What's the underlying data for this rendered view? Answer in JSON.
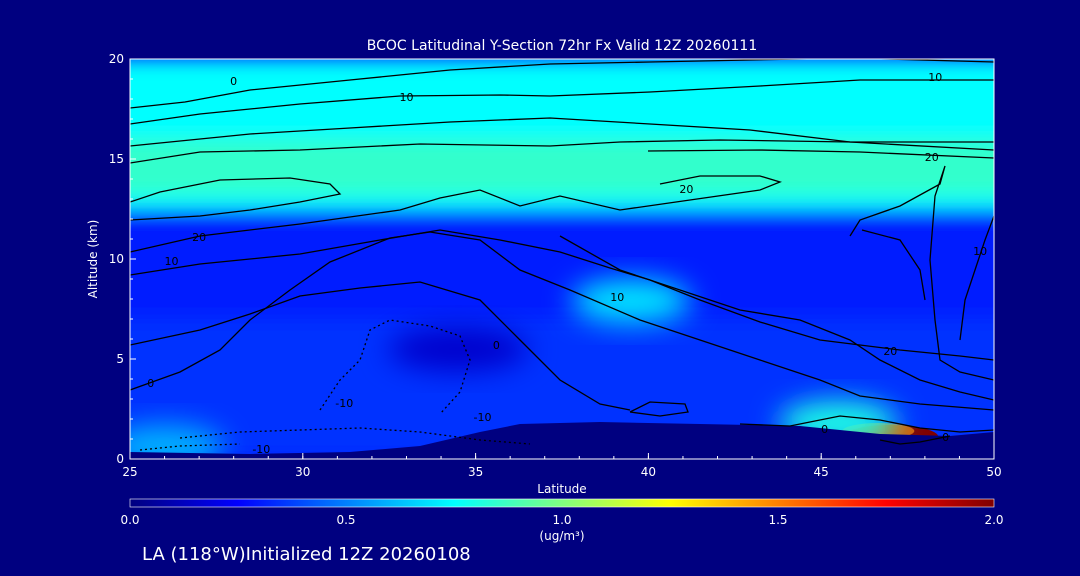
{
  "chart_data": {
    "type": "heatmap",
    "title": "BCOC Latitudinal Y-Section 72hr  Fx Valid 12Z 20260111",
    "xlabel": "Latitude",
    "ylabel": "Altitude (km)",
    "xlim": [
      25,
      50
    ],
    "ylim": [
      0,
      20
    ],
    "x_ticks": [
      "25",
      "30",
      "35",
      "40",
      "45",
      "50"
    ],
    "y_ticks": [
      "0",
      "5",
      "10",
      "15",
      "20"
    ],
    "colorbar": {
      "min": 0.0,
      "max": 2.0,
      "ticks": [
        "0.0",
        "0.5",
        "1.0",
        "1.5",
        "2.0"
      ],
      "units": "(ug/m³)",
      "colormap": [
        "#00007f",
        "#0000ff",
        "#0080ff",
        "#00ffff",
        "#80ff80",
        "#ffff00",
        "#ff8000",
        "#ff0000",
        "#7f0000"
      ]
    },
    "field": {
      "background_value": 0.3,
      "bands": [
        {
          "lat_from": 25,
          "lat_to": 50,
          "alt_from": 12.5,
          "alt_to": 20,
          "value": 0.75
        },
        {
          "lat_from": 25,
          "lat_to": 50,
          "alt_from": 13.2,
          "alt_to": 16.0,
          "value": 0.85
        },
        {
          "lat_from": 25,
          "lat_to": 50,
          "alt_from": 7.0,
          "alt_to": 12.5,
          "value": 0.3
        },
        {
          "lat_from": 25,
          "lat_to": 50,
          "alt_from": 0,
          "alt_to": 7.0,
          "value": 0.35
        }
      ],
      "blobs": [
        {
          "lat": 39.5,
          "alt": 7.9,
          "value": 0.7
        },
        {
          "lat": 47.0,
          "alt": 1.1,
          "value": 2.0
        },
        {
          "lat": 45.5,
          "alt": 1.8,
          "value": 0.8
        },
        {
          "lat": 34.5,
          "alt": 5.5,
          "value": 0.15
        },
        {
          "lat": 26.0,
          "alt": 0.6,
          "value": 0.6
        }
      ]
    },
    "contour_labels": [
      {
        "text": "0",
        "lat": 28.0,
        "alt": 18.7
      },
      {
        "text": "10",
        "lat": 33.0,
        "alt": 17.9
      },
      {
        "text": "10",
        "lat": 48.3,
        "alt": 18.9
      },
      {
        "text": "20",
        "lat": 48.2,
        "alt": 14.9
      },
      {
        "text": "20",
        "lat": 27.0,
        "alt": 10.9
      },
      {
        "text": "20",
        "lat": 41.1,
        "alt": 13.3
      },
      {
        "text": "10",
        "lat": 26.2,
        "alt": 9.7
      },
      {
        "text": "10",
        "lat": 39.1,
        "alt": 7.9
      },
      {
        "text": "10",
        "lat": 49.6,
        "alt": 10.2
      },
      {
        "text": "0",
        "lat": 35.6,
        "alt": 5.5
      },
      {
        "text": "20",
        "lat": 47.0,
        "alt": 5.2
      },
      {
        "text": "0",
        "lat": 25.6,
        "alt": 3.6
      },
      {
        "text": "-10",
        "lat": 31.2,
        "alt": 2.6
      },
      {
        "text": "-10",
        "lat": 35.2,
        "alt": 1.9
      },
      {
        "text": "-10",
        "lat": 28.8,
        "alt": 0.3
      },
      {
        "text": "0",
        "lat": 45.1,
        "alt": 1.3
      },
      {
        "text": "0",
        "lat": 48.6,
        "alt": 0.9
      }
    ]
  },
  "caption": "LA (118°W)Initialized 12Z 20260108"
}
